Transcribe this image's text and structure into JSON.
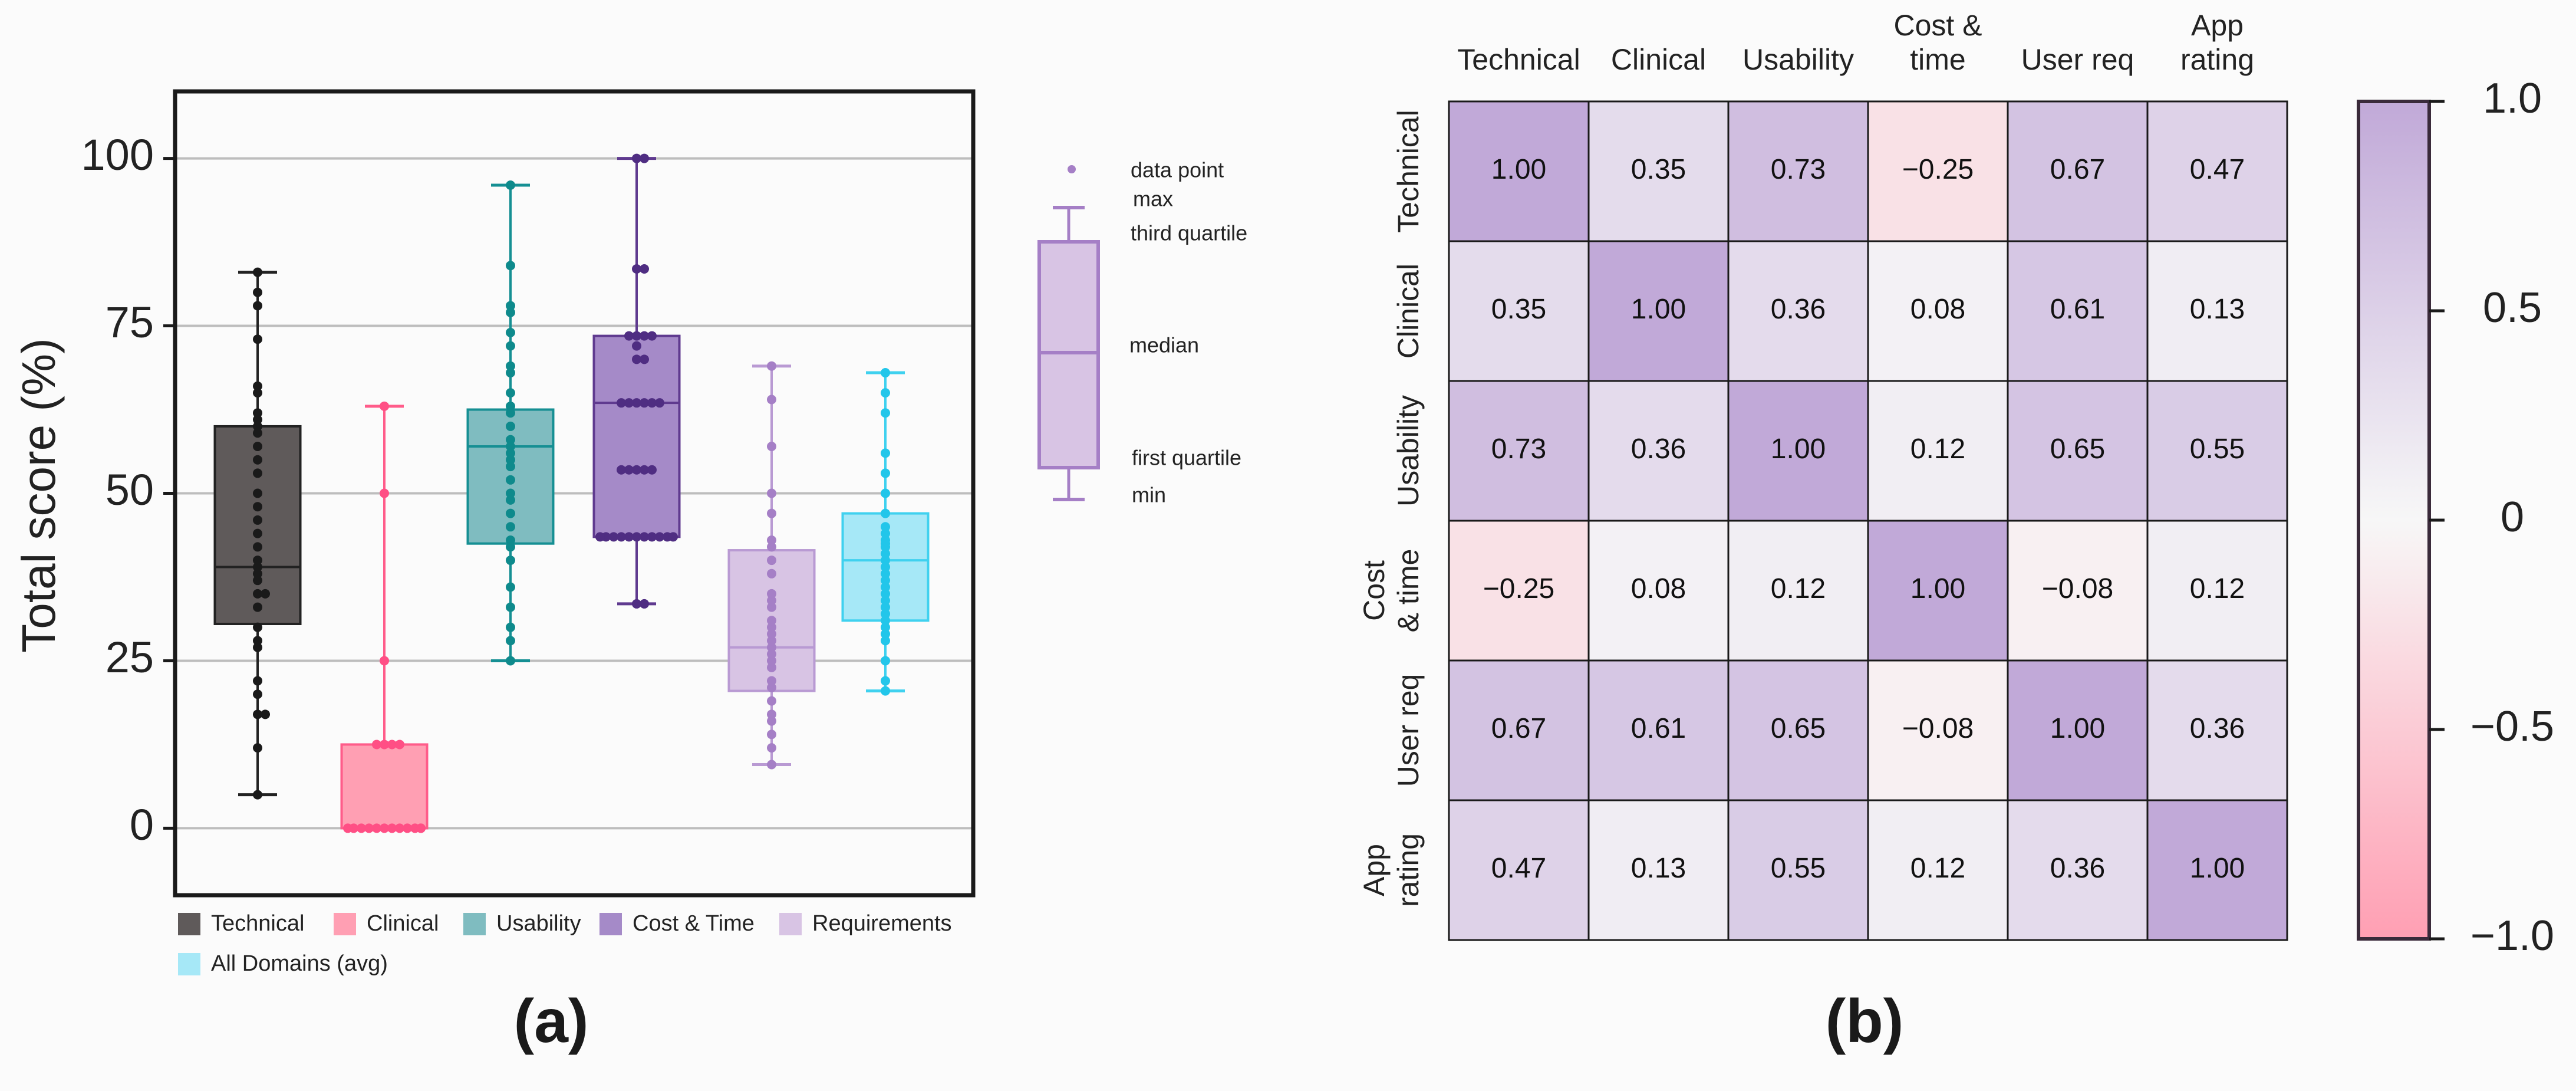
{
  "figure": {
    "panel_a_label": "(a)",
    "panel_b_label": "(b)"
  },
  "chart_data": [
    {
      "type": "box",
      "ylabel": "Total score (%)",
      "ylim": [
        -10,
        110
      ],
      "yticks": [
        0,
        25,
        50,
        75,
        100
      ],
      "grid": true,
      "legend_position": "bottom",
      "series": [
        {
          "name": "Technical",
          "color": "#5f5a5a",
          "edge": "#222222",
          "point_color": "#1a1a1a",
          "min": 5,
          "q1": 30.5,
          "median": 39,
          "q3": 60,
          "max": 83,
          "points": [
            5,
            12,
            17,
            17,
            20,
            22,
            27,
            28,
            30,
            33,
            35,
            35,
            37,
            38,
            39,
            40,
            42,
            44,
            46,
            48,
            50,
            53,
            55,
            57,
            59,
            60,
            61,
            62,
            65,
            66,
            73,
            78,
            80,
            83
          ]
        },
        {
          "name": "Clinical",
          "color": "#ff9fb3",
          "edge": "#ff5c8a",
          "point_color": "#ff4f85",
          "min": 0,
          "q1": 0,
          "median": 0,
          "q3": 12.5,
          "max": 63,
          "points": [
            0,
            0,
            0,
            0,
            0,
            0,
            0,
            0,
            0,
            0,
            0,
            0,
            12.5,
            12.5,
            12.5,
            12.5,
            25,
            50,
            63
          ]
        },
        {
          "name": "Usability",
          "color": "#7fbcc0",
          "edge": "#158f93",
          "point_color": "#0e8a8c",
          "min": 25,
          "q1": 42.5,
          "median": 57,
          "q3": 62.5,
          "max": 96,
          "points": [
            25,
            28,
            30,
            33,
            36,
            40,
            42,
            43,
            45,
            47,
            49,
            50,
            52,
            54,
            55,
            56,
            57,
            58,
            60,
            62,
            63,
            65,
            68,
            69,
            72,
            74,
            77,
            78,
            84,
            96
          ]
        },
        {
          "name": "Cost & Time",
          "color": "#a58ac8",
          "edge": "#5f3a8f",
          "point_color": "#4f2d82",
          "min": 33.5,
          "q1": 43.5,
          "median": 63.5,
          "q3": 73.5,
          "max": 100,
          "points": [
            33.5,
            33.5,
            43.5,
            43.5,
            43.5,
            43.5,
            43.5,
            43.5,
            43.5,
            43.5,
            43.5,
            43.5,
            43.5,
            53.5,
            53.5,
            53.5,
            53.5,
            53.5,
            63.5,
            63.5,
            63.5,
            63.5,
            63.5,
            63.5,
            70,
            70,
            72,
            73.5,
            73.5,
            73.5,
            73.5,
            83.5,
            83.5,
            100,
            100
          ]
        },
        {
          "name": "Requirements",
          "color": "#d8c4e4",
          "edge": "#b99ad3",
          "point_color": "#a57fc6",
          "min": 9.5,
          "q1": 20.5,
          "median": 27,
          "q3": 41.5,
          "max": 69,
          "points": [
            9.5,
            12,
            14,
            16,
            17,
            19,
            21,
            22,
            24,
            25,
            26,
            27,
            28,
            29,
            30,
            31,
            33,
            34,
            35,
            38,
            40,
            42,
            43,
            47,
            50,
            57,
            64,
            69
          ]
        },
        {
          "name": "All Domains (avg)",
          "color": "#a6e8f7",
          "edge": "#3fd1ef",
          "point_color": "#22c6ea",
          "min": 20.5,
          "q1": 31,
          "median": 40,
          "q3": 47,
          "max": 68,
          "points": [
            20.5,
            22,
            25,
            28,
            29,
            30,
            31,
            32,
            33,
            34,
            35,
            36,
            37,
            38,
            39,
            40,
            41,
            42,
            42.5,
            43,
            44,
            45,
            47,
            50,
            53,
            56,
            62,
            65,
            68
          ]
        }
      ],
      "key_legend": {
        "data_point": "data point",
        "max": "max",
        "third_quartile": "third quartile",
        "median": "median",
        "first_quartile": "first quartile",
        "min": "min"
      }
    },
    {
      "type": "heatmap",
      "row_labels": [
        [
          "Technical"
        ],
        [
          "Clinical"
        ],
        [
          "Usability"
        ],
        [
          "Cost",
          "& time"
        ],
        [
          "User req"
        ],
        [
          "App",
          "rating"
        ]
      ],
      "col_labels": [
        [
          "Technical"
        ],
        [
          "Clinical"
        ],
        [
          "Usability"
        ],
        [
          "Cost &",
          "time"
        ],
        [
          "User req"
        ],
        [
          "App",
          "rating"
        ]
      ],
      "values": [
        [
          1.0,
          0.35,
          0.73,
          -0.25,
          0.67,
          0.47
        ],
        [
          0.35,
          1.0,
          0.36,
          0.08,
          0.61,
          0.13
        ],
        [
          0.73,
          0.36,
          1.0,
          0.12,
          0.65,
          0.55
        ],
        [
          -0.25,
          0.08,
          0.12,
          1.0,
          -0.08,
          0.12
        ],
        [
          0.67,
          0.61,
          0.65,
          -0.08,
          1.0,
          0.36
        ],
        [
          0.47,
          0.13,
          0.55,
          0.12,
          0.36,
          1.0
        ]
      ],
      "cell_labels": [
        [
          "1.00",
          "0.35",
          "0.73",
          "−0.25",
          "0.67",
          "0.47"
        ],
        [
          "0.35",
          "1.00",
          "0.36",
          "0.08",
          "0.61",
          "0.13"
        ],
        [
          "0.73",
          "0.36",
          "1.00",
          "0.12",
          "0.65",
          "0.55"
        ],
        [
          "−0.25",
          "0.08",
          "0.12",
          "1.00",
          "−0.08",
          "0.12"
        ],
        [
          "0.67",
          "0.61",
          "0.65",
          "−0.08",
          "1.00",
          "0.36"
        ],
        [
          "0.47",
          "0.13",
          "0.55",
          "0.12",
          "0.36",
          "1.00"
        ]
      ],
      "colorbar": {
        "range": [
          -1.0,
          1.0
        ],
        "ticks": [
          1.0,
          0.5,
          0,
          -0.5,
          -1.0
        ],
        "tick_labels": [
          "1.0",
          "0.5",
          "0",
          "−0.5",
          "−1.0"
        ],
        "high_color": "#c1a9d8",
        "mid_color": "#f7f7f7",
        "low_color": "#ff9fb3"
      }
    }
  ]
}
